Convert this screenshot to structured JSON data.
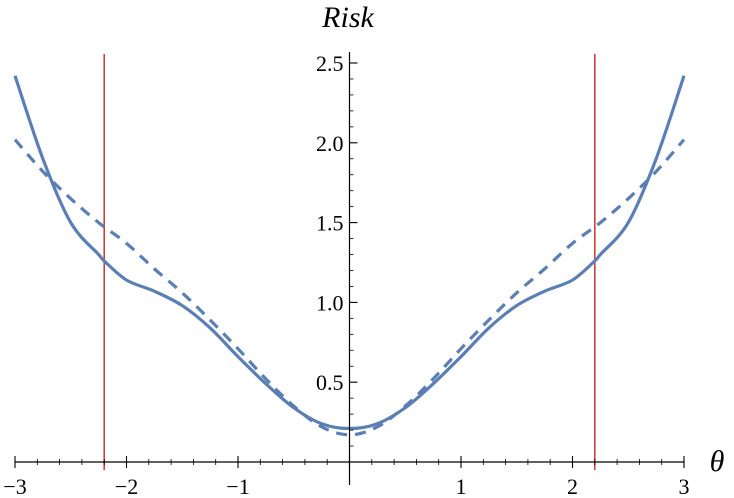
{
  "chart_data": {
    "type": "line",
    "title": "",
    "xlabel": "θ",
    "ylabel": "Risk",
    "xlim": [
      -3,
      3
    ],
    "ylim": [
      0,
      2.55
    ],
    "x_ticks": [
      -3,
      -2,
      -1,
      0,
      1,
      2,
      3
    ],
    "x_tick_labels": [
      "−3",
      "−2",
      "−1",
      "",
      "1",
      "2",
      "3"
    ],
    "y_ticks": [
      0.5,
      1.0,
      1.5,
      2.0,
      2.5
    ],
    "y_tick_labels": [
      "0.5",
      "1.0",
      "1.5",
      "2.0",
      "2.5"
    ],
    "grid": false,
    "vertical_lines": [
      {
        "x": -2.2,
        "color": "#cc3333"
      },
      {
        "x": 2.2,
        "color": "#cc3333"
      }
    ],
    "series": [
      {
        "style": "solid",
        "color": "#5b7fb4",
        "x": [
          -3.0,
          -2.75,
          -2.5,
          -2.25,
          -2.2,
          -2.0,
          -1.75,
          -1.5,
          -1.25,
          -1.0,
          -0.75,
          -0.5,
          -0.25,
          0.0,
          0.25,
          0.5,
          0.75,
          1.0,
          1.25,
          1.5,
          1.75,
          2.0,
          2.2,
          2.25,
          2.5,
          2.75,
          3.0
        ],
        "y": [
          2.42,
          1.9,
          1.5,
          1.3,
          1.26,
          1.14,
          1.07,
          0.98,
          0.84,
          0.66,
          0.49,
          0.34,
          0.24,
          0.21,
          0.24,
          0.34,
          0.49,
          0.66,
          0.84,
          0.98,
          1.07,
          1.14,
          1.26,
          1.3,
          1.5,
          1.9,
          2.42
        ]
      },
      {
        "style": "dashed",
        "color": "#5b7fb4",
        "x": [
          -3.0,
          -2.75,
          -2.5,
          -2.25,
          -2.0,
          -1.75,
          -1.5,
          -1.25,
          -1.0,
          -0.75,
          -0.5,
          -0.25,
          0.0,
          0.25,
          0.5,
          0.75,
          1.0,
          1.25,
          1.5,
          1.75,
          2.0,
          2.25,
          2.5,
          2.75,
          3.0
        ],
        "y": [
          2.02,
          1.82,
          1.65,
          1.5,
          1.37,
          1.21,
          1.06,
          0.89,
          0.71,
          0.52,
          0.35,
          0.22,
          0.17,
          0.22,
          0.35,
          0.52,
          0.71,
          0.89,
          1.06,
          1.21,
          1.37,
          1.5,
          1.65,
          1.82,
          2.02
        ]
      }
    ]
  }
}
